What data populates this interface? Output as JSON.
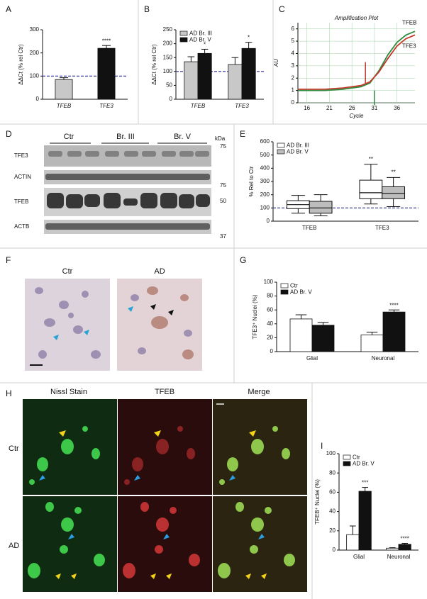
{
  "panel_labels": [
    "A",
    "B",
    "C",
    "D",
    "E",
    "F",
    "G",
    "H",
    "I"
  ],
  "chart_data": [
    {
      "type": "bar",
      "ylabel": "ΔΔCt (% rel Ctr)",
      "categories": [
        "TFEB",
        "TFE3"
      ],
      "series": [
        {
          "name": null,
          "color": "#222222",
          "colors": [
            "#c8c8c8",
            "#111111"
          ],
          "values": [
            85,
            220
          ],
          "errors": [
            8,
            12
          ],
          "labels": [
            null,
            "****"
          ]
        }
      ],
      "ylim": [
        0,
        300
      ],
      "yticks": [
        0,
        100,
        200,
        300
      ],
      "reference_line": 100
    },
    {
      "type": "bar",
      "ylabel": "ΔΔCt (% rel Ctr)",
      "categories": [
        "TFEB",
        "TFE3"
      ],
      "legend": "upper left",
      "series": [
        {
          "name": "AD Br. III",
          "color": "#c8c8c8",
          "values": [
            135,
            125
          ],
          "errors": [
            18,
            25
          ],
          "labels": [
            null,
            null
          ]
        },
        {
          "name": "AD Br. V",
          "color": "#111111",
          "values": [
            165,
            183
          ],
          "errors": [
            15,
            22
          ],
          "labels": [
            "*",
            "*"
          ]
        }
      ],
      "ylim": [
        0,
        250
      ],
      "yticks": [
        0,
        50,
        100,
        150,
        200,
        250
      ],
      "reference_line": 100
    },
    {
      "type": "line",
      "title": "Amplification Plot",
      "xlabel": "Cycle",
      "ylabel": "AU",
      "grid": true,
      "x": [
        14,
        16,
        18,
        20,
        22,
        24,
        26,
        28,
        30,
        32,
        34,
        36,
        38,
        40
      ],
      "series": [
        {
          "name": "TFEB",
          "color": "#2e8b3e",
          "values": [
            1.0,
            1.0,
            1.0,
            1.0,
            1.05,
            1.1,
            1.2,
            1.3,
            1.6,
            2.6,
            3.9,
            4.9,
            5.5,
            5.8
          ]
        },
        {
          "name": "TFE3",
          "color": "#c0392b",
          "values": [
            1.1,
            1.1,
            1.1,
            1.1,
            1.15,
            1.2,
            1.3,
            1.4,
            1.7,
            2.5,
            3.6,
            4.6,
            5.2,
            5.5
          ]
        }
      ],
      "xlim": [
        14,
        40
      ],
      "xticks": [
        16,
        21,
        26,
        31,
        36
      ],
      "ylim": [
        0,
        6.5
      ],
      "yticks": [
        0,
        1,
        2,
        3,
        4,
        5,
        6
      ]
    },
    {
      "type": "box",
      "ylabel": "% Rel to Ctr",
      "categories": [
        "TFEB",
        "TFE3"
      ],
      "legend": "upper left",
      "series": [
        {
          "name": "AD Br. III",
          "color": "#ffffff",
          "values": [
            [
              60,
              95,
              125,
              155,
              195
            ],
            [
              130,
              170,
              215,
              310,
              430
            ]
          ],
          "labels": [
            null,
            "**"
          ]
        },
        {
          "name": "AD Br. V",
          "color": "#bdbdbd",
          "values": [
            [
              40,
              60,
              100,
              150,
              200
            ],
            [
              110,
              170,
              210,
              260,
              330
            ]
          ],
          "labels": [
            null,
            "**"
          ]
        }
      ],
      "ylim": [
        0,
        600
      ],
      "yticks": [
        0,
        100,
        200,
        300,
        400,
        500,
        600
      ],
      "reference_line": 100
    },
    {
      "type": "bar",
      "ylabel": "TFE3⁺ Nuclei (%)",
      "categories": [
        "Glial",
        "Neuronal"
      ],
      "legend": "upper left",
      "series": [
        {
          "name": "Ctr",
          "color": "#ffffff",
          "values": [
            47,
            24
          ],
          "errors": [
            6,
            4
          ],
          "labels": [
            null,
            null
          ]
        },
        {
          "name": "AD Br. V",
          "color": "#111111",
          "values": [
            38,
            57
          ],
          "errors": [
            4,
            3
          ],
          "labels": [
            null,
            "****"
          ]
        }
      ],
      "ylim": [
        0,
        100
      ],
      "yticks": [
        0,
        20,
        40,
        60,
        80,
        100
      ]
    },
    {
      "type": "bar",
      "ylabel": "TFEB⁺ Nuclei (%)",
      "categories": [
        "Glial",
        "Neuronal"
      ],
      "legend": "upper left",
      "series": [
        {
          "name": "Ctr",
          "color": "#ffffff",
          "values": [
            16,
            2
          ],
          "errors": [
            9,
            0.5
          ],
          "labels": [
            null,
            null
          ]
        },
        {
          "name": "AD Br. V",
          "color": "#111111",
          "values": [
            61,
            6
          ],
          "errors": [
            4,
            1
          ],
          "labels": [
            "***",
            "****"
          ]
        }
      ],
      "ylim": [
        0,
        100
      ],
      "yticks": [
        0,
        20,
        40,
        60,
        80,
        100
      ]
    }
  ],
  "blot": {
    "groups": [
      "Ctr",
      "Br. III",
      "Br. V"
    ],
    "unit": "kDa",
    "rows": [
      "TFE3",
      "ACTIN",
      "TFEB",
      "ACTB"
    ],
    "markers": [
      "75",
      "75",
      "50",
      "37"
    ]
  },
  "histology": {
    "columns": [
      "Ctr",
      "AD"
    ]
  },
  "fluorescence": {
    "columns": [
      "Nissl Stain",
      "TFEB",
      "Merge"
    ],
    "rows": [
      "Ctr",
      "AD"
    ]
  }
}
